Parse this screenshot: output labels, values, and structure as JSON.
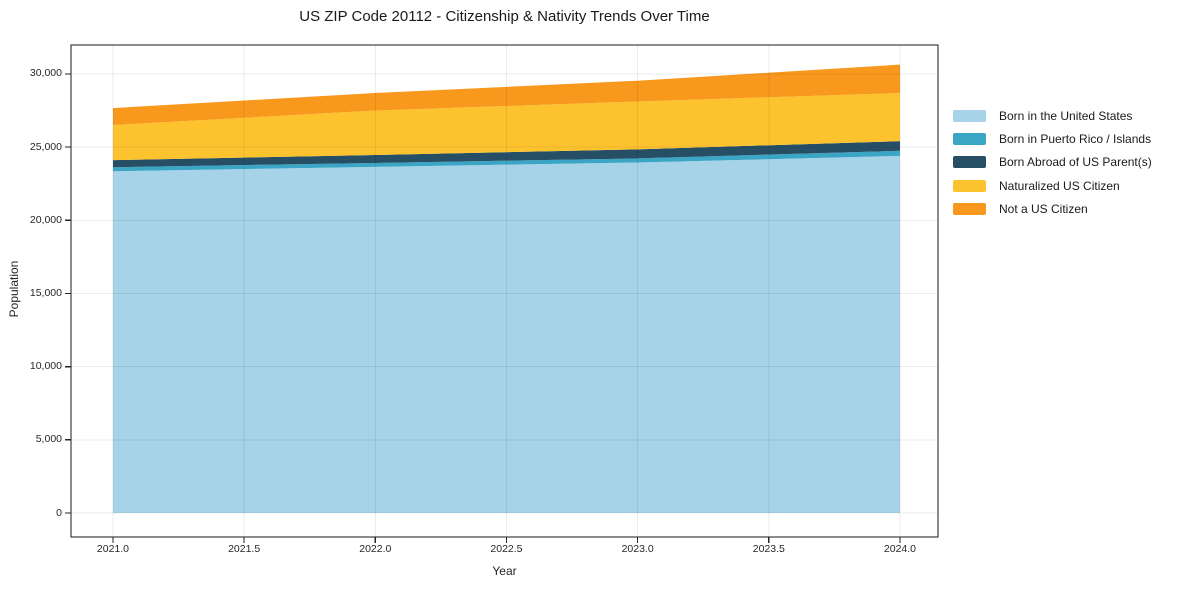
{
  "chart": {
    "title": "US ZIP Code 20112 - Citizenship & Nativity Trends Over Time",
    "xlabel": "Year",
    "ylabel": "Population"
  },
  "chart_data": {
    "type": "area",
    "stacked": true,
    "title": "US ZIP Code 20112 - Citizenship & Nativity Trends Over Time",
    "xlabel": "Year",
    "ylabel": "Population",
    "x": [
      2021,
      2022,
      2023,
      2024
    ],
    "series": [
      {
        "name": "Born in the United States",
        "color": "#a6d3e8",
        "values": [
          23350,
          23650,
          23950,
          24400
        ]
      },
      {
        "name": "Born in Puerto Rico / Islands",
        "color": "#3aa5c4",
        "values": [
          280,
          270,
          280,
          350
        ]
      },
      {
        "name": "Born Abroad of US Parent(s)",
        "color": "#264f66",
        "values": [
          480,
          540,
          620,
          660
        ]
      },
      {
        "name": "Naturalized US Citizen",
        "color": "#fdc32f",
        "values": [
          2400,
          3040,
          3270,
          3290
        ]
      },
      {
        "name": "Not a US Citizen",
        "color": "#f8981d",
        "values": [
          1160,
          1200,
          1420,
          1940
        ]
      }
    ],
    "totals": [
      27670,
      28700,
      29540,
      30640
    ],
    "xlim": [
      2020.84,
      2024.145
    ],
    "ylim": [
      -1640,
      31980
    ],
    "x_ticks": [
      2021.0,
      2021.5,
      2022.0,
      2022.5,
      2023.0,
      2023.5,
      2024.0
    ],
    "x_tick_labels": [
      "2021.0",
      "2021.5",
      "2022.0",
      "2022.5",
      "2023.0",
      "2023.5",
      "2024.0"
    ],
    "y_ticks": [
      0,
      5000,
      10000,
      15000,
      20000,
      25000,
      30000
    ],
    "y_tick_labels": [
      "0",
      "5,000",
      "10,000",
      "15,000",
      "20,000",
      "25,000",
      "30,000"
    ],
    "grid": true,
    "grid_color": "rgba(0,0,0,0.08)",
    "spine_color": "#1a1a1a",
    "tick_color": "#262626",
    "legend_position": "outside-right"
  },
  "legend": {
    "entries": [
      {
        "label": "Born in the United States",
        "color": "#a6d3e8"
      },
      {
        "label": "Born in Puerto Rico / Islands",
        "color": "#3aa5c4"
      },
      {
        "label": "Born Abroad of US Parent(s)",
        "color": "#264f66"
      },
      {
        "label": "Naturalized US Citizen",
        "color": "#fdc32f"
      },
      {
        "label": "Not a US Citizen",
        "color": "#f8981d"
      }
    ]
  }
}
